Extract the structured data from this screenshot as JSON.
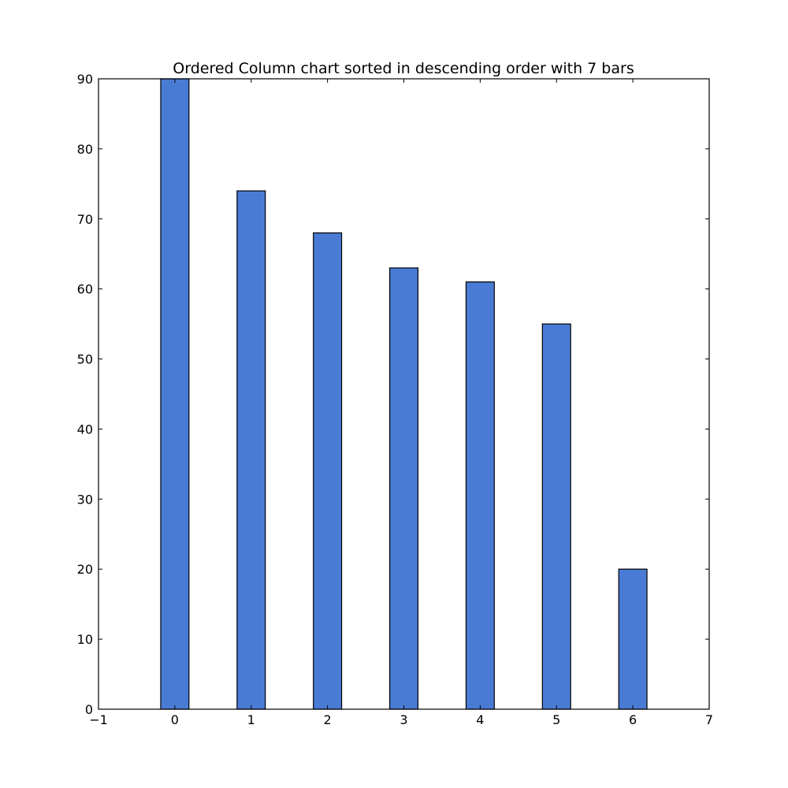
{
  "chart_data": {
    "type": "bar",
    "title": "Ordered Column chart sorted in descending order with 7 bars",
    "xlabel": "",
    "ylabel": "",
    "x": [
      0,
      1,
      2,
      3,
      4,
      5,
      6
    ],
    "values": [
      90,
      74,
      68,
      63,
      61,
      55,
      20
    ],
    "xlim": [
      -1,
      7
    ],
    "ylim": [
      0,
      90
    ],
    "x_ticks": [
      "−1",
      "0",
      "1",
      "2",
      "3",
      "4",
      "5",
      "6",
      "7"
    ],
    "y_ticks": [
      "0",
      "10",
      "20",
      "30",
      "40",
      "50",
      "60",
      "70",
      "80",
      "90"
    ],
    "grid": false,
    "legend": "none",
    "bar_color": "#4a7bd4",
    "edge_color": "#000000"
  }
}
